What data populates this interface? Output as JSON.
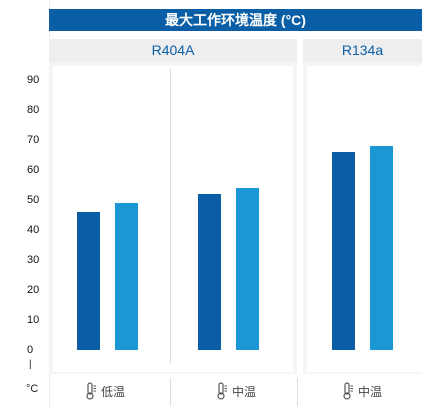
{
  "title": "最大工作环境温度 (°C)",
  "y_unit": "°C",
  "y_separator": "|",
  "groups": [
    {
      "label": "R404A"
    },
    {
      "label": "R134a"
    }
  ],
  "x_labels": [
    "低温",
    "中温",
    "中温"
  ],
  "colors": {
    "title_bg": "#0a5ea6",
    "series_dark": "#0a5ea6",
    "series_light": "#1c97d6"
  },
  "chart_data": {
    "type": "bar",
    "title": "最大工作环境温度 (°C)",
    "ylabel": "°C",
    "ylim": [
      0,
      90
    ],
    "yticks": [
      0,
      10,
      20,
      30,
      40,
      50,
      60,
      70,
      80,
      90
    ],
    "groups": [
      "R404A",
      "R404A",
      "R134a"
    ],
    "categories": [
      "低温",
      "中温",
      "中温"
    ],
    "series": [
      {
        "values": [
          46,
          52,
          66
        ]
      },
      {
        "values": [
          49,
          54,
          68
        ]
      }
    ]
  }
}
